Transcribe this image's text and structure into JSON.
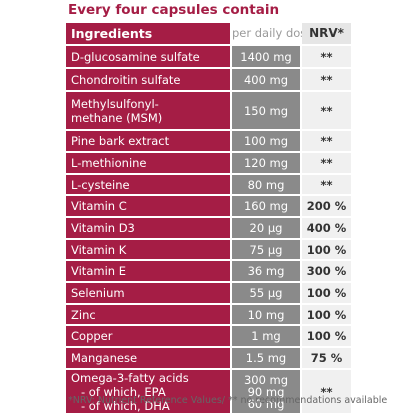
{
  "title": "Every four capsules contain",
  "header": {
    "ingredients": "Ingredients",
    "dose": "per daily dose",
    "nrv": "NRV*"
  },
  "rows": [
    {
      "name": "D-glucosamine sulfate",
      "dose": "1400 mg",
      "nrv": "**"
    },
    {
      "name": "Chondroitin sulfate",
      "dose": "400 mg",
      "nrv": "**"
    },
    {
      "name_line1": "Methylsulfonyl-",
      "name_line2": "methane (MSM)",
      "dose": "150 mg",
      "nrv": "**"
    },
    {
      "name": "Pine bark extract",
      "dose": "100 mg",
      "nrv": "**"
    },
    {
      "name": "L-methionine",
      "dose": "120 mg",
      "nrv": "**"
    },
    {
      "name": "L-cysteine",
      "dose": "80 mg",
      "nrv": "**"
    },
    {
      "name": "Vitamin C",
      "dose": "160 mg",
      "nrv": "200 %"
    },
    {
      "name": "Vitamin D3",
      "dose": "20 µg",
      "nrv": "400 %"
    },
    {
      "name": "Vitamin K",
      "dose": "75 µg",
      "nrv": "100 %"
    },
    {
      "name": "Vitamin E",
      "dose": "36 mg",
      "nrv": "300 %"
    },
    {
      "name": "Selenium",
      "dose": "55 µg",
      "nrv": "100 %"
    },
    {
      "name": "Zinc",
      "dose": "10 mg",
      "nrv": "100 %"
    },
    {
      "name": "Copper",
      "dose": "1 mg",
      "nrv": "100 %"
    },
    {
      "name": "Manganese",
      "dose": "1.5 mg",
      "nrv": "75 %"
    },
    {
      "name_line1": "Omega-3-fatty acids",
      "name_line2": "- of which, EPA",
      "name_line3": "- of which, DHA",
      "dose_line1": "300 mg",
      "dose_line2": "90 mg",
      "dose_line3": "60 mg",
      "nrv": "**"
    }
  ],
  "footnote": "*NRV: Nutrient Reference Values/  ** no recommendations available"
}
